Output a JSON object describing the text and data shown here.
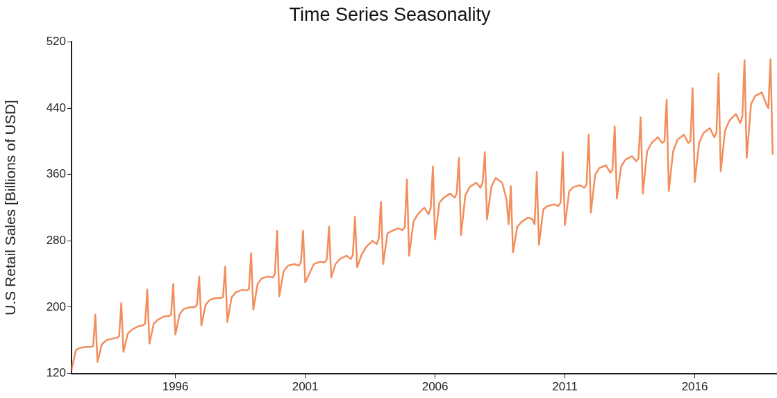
{
  "chart_data": {
    "type": "line",
    "title": "Time Series Seasonality",
    "ylabel": "U.S Retail Sales [Billions of USD]",
    "xlim": [
      "1992-01",
      "2019-03"
    ],
    "xticks": [
      "1996",
      "2001",
      "2006",
      "2011",
      "2016"
    ],
    "ylim": [
      120,
      520
    ],
    "yticks": [
      120,
      200,
      280,
      360,
      440,
      520
    ],
    "grid": false,
    "legend": false,
    "marker": "none",
    "line_style": "solid",
    "series": [
      {
        "color": "#f28e5c",
        "x": [
          "1992-01",
          "1992-03",
          "1992-05",
          "1992-08",
          "1992-10",
          "1992-11",
          "1992-12",
          "1993-01",
          "1993-03",
          "1993-05",
          "1993-08",
          "1993-10",
          "1993-11",
          "1993-12",
          "1994-01",
          "1994-03",
          "1994-05",
          "1994-08",
          "1994-10",
          "1994-11",
          "1994-12",
          "1995-01",
          "1995-03",
          "1995-05",
          "1995-08",
          "1995-10",
          "1995-11",
          "1995-12",
          "1996-01",
          "1996-03",
          "1996-05",
          "1996-08",
          "1996-10",
          "1996-11",
          "1996-12",
          "1997-01",
          "1997-03",
          "1997-05",
          "1997-08",
          "1997-10",
          "1997-11",
          "1997-12",
          "1998-01",
          "1998-03",
          "1998-05",
          "1998-08",
          "1998-10",
          "1998-11",
          "1998-12",
          "1999-01",
          "1999-03",
          "1999-05",
          "1999-08",
          "1999-10",
          "1999-11",
          "1999-12",
          "2000-01",
          "2000-03",
          "2000-05",
          "2000-08",
          "2000-10",
          "2000-11",
          "2000-12",
          "2001-01",
          "2001-03",
          "2001-05",
          "2001-08",
          "2001-10",
          "2001-11",
          "2001-12",
          "2002-01",
          "2002-03",
          "2002-05",
          "2002-08",
          "2002-10",
          "2002-11",
          "2002-12",
          "2003-01",
          "2003-03",
          "2003-05",
          "2003-08",
          "2003-10",
          "2003-11",
          "2003-12",
          "2004-01",
          "2004-03",
          "2004-05",
          "2004-08",
          "2004-10",
          "2004-11",
          "2004-12",
          "2005-01",
          "2005-03",
          "2005-05",
          "2005-08",
          "2005-10",
          "2005-11",
          "2005-12",
          "2006-01",
          "2006-03",
          "2006-05",
          "2006-08",
          "2006-10",
          "2006-11",
          "2006-12",
          "2007-01",
          "2007-03",
          "2007-05",
          "2007-08",
          "2007-10",
          "2007-11",
          "2007-12",
          "2008-01",
          "2008-03",
          "2008-05",
          "2008-08",
          "2008-10",
          "2008-11",
          "2008-12",
          "2009-01",
          "2009-03",
          "2009-05",
          "2009-08",
          "2009-10",
          "2009-11",
          "2009-12",
          "2010-01",
          "2010-03",
          "2010-05",
          "2010-08",
          "2010-10",
          "2010-11",
          "2010-12",
          "2011-01",
          "2011-03",
          "2011-05",
          "2011-08",
          "2011-10",
          "2011-11",
          "2011-12",
          "2012-01",
          "2012-03",
          "2012-05",
          "2012-08",
          "2012-10",
          "2012-11",
          "2012-12",
          "2013-01",
          "2013-03",
          "2013-05",
          "2013-08",
          "2013-10",
          "2013-11",
          "2013-12",
          "2014-01",
          "2014-03",
          "2014-05",
          "2014-08",
          "2014-10",
          "2014-11",
          "2014-12",
          "2015-01",
          "2015-03",
          "2015-05",
          "2015-08",
          "2015-10",
          "2015-11",
          "2015-12",
          "2016-01",
          "2016-03",
          "2016-05",
          "2016-08",
          "2016-10",
          "2016-11",
          "2016-12",
          "2017-01",
          "2017-03",
          "2017-05",
          "2017-08",
          "2017-10",
          "2017-11",
          "2017-12",
          "2018-01",
          "2018-03",
          "2018-05",
          "2018-08",
          "2018-10",
          "2018-11",
          "2018-12",
          "2019-01"
        ],
        "values": [
          124,
          148,
          151,
          152,
          152,
          153,
          191,
          134,
          155,
          160,
          162,
          163,
          165,
          205,
          146,
          168,
          173,
          177,
          178,
          180,
          221,
          156,
          180,
          185,
          189,
          189,
          191,
          228,
          167,
          192,
          198,
          200,
          200,
          203,
          237,
          178,
          203,
          209,
          211,
          211,
          212,
          249,
          182,
          212,
          218,
          221,
          220,
          222,
          265,
          197,
          228,
          235,
          237,
          236,
          240,
          292,
          213,
          243,
          250,
          252,
          250,
          254,
          292,
          230,
          241,
          252,
          255,
          254,
          258,
          297,
          236,
          252,
          258,
          262,
          258,
          263,
          309,
          248,
          263,
          272,
          280,
          276,
          283,
          327,
          252,
          289,
          292,
          295,
          293,
          297,
          354,
          262,
          303,
          312,
          320,
          312,
          320,
          370,
          282,
          326,
          332,
          337,
          332,
          337,
          380,
          287,
          335,
          345,
          350,
          344,
          351,
          387,
          306,
          345,
          356,
          350,
          330,
          300,
          346,
          266,
          297,
          303,
          308,
          306,
          300,
          363,
          275,
          318,
          322,
          324,
          322,
          326,
          387,
          299,
          340,
          345,
          347,
          344,
          348,
          408,
          314,
          360,
          368,
          371,
          362,
          366,
          418,
          331,
          370,
          378,
          382,
          376,
          380,
          429,
          337,
          388,
          398,
          405,
          398,
          400,
          450,
          340,
          388,
          402,
          408,
          398,
          400,
          464,
          351,
          398,
          410,
          416,
          405,
          410,
          482,
          364,
          413,
          425,
          433,
          422,
          430,
          498,
          380,
          445,
          455,
          459,
          445,
          440,
          499,
          385
        ]
      }
    ]
  }
}
